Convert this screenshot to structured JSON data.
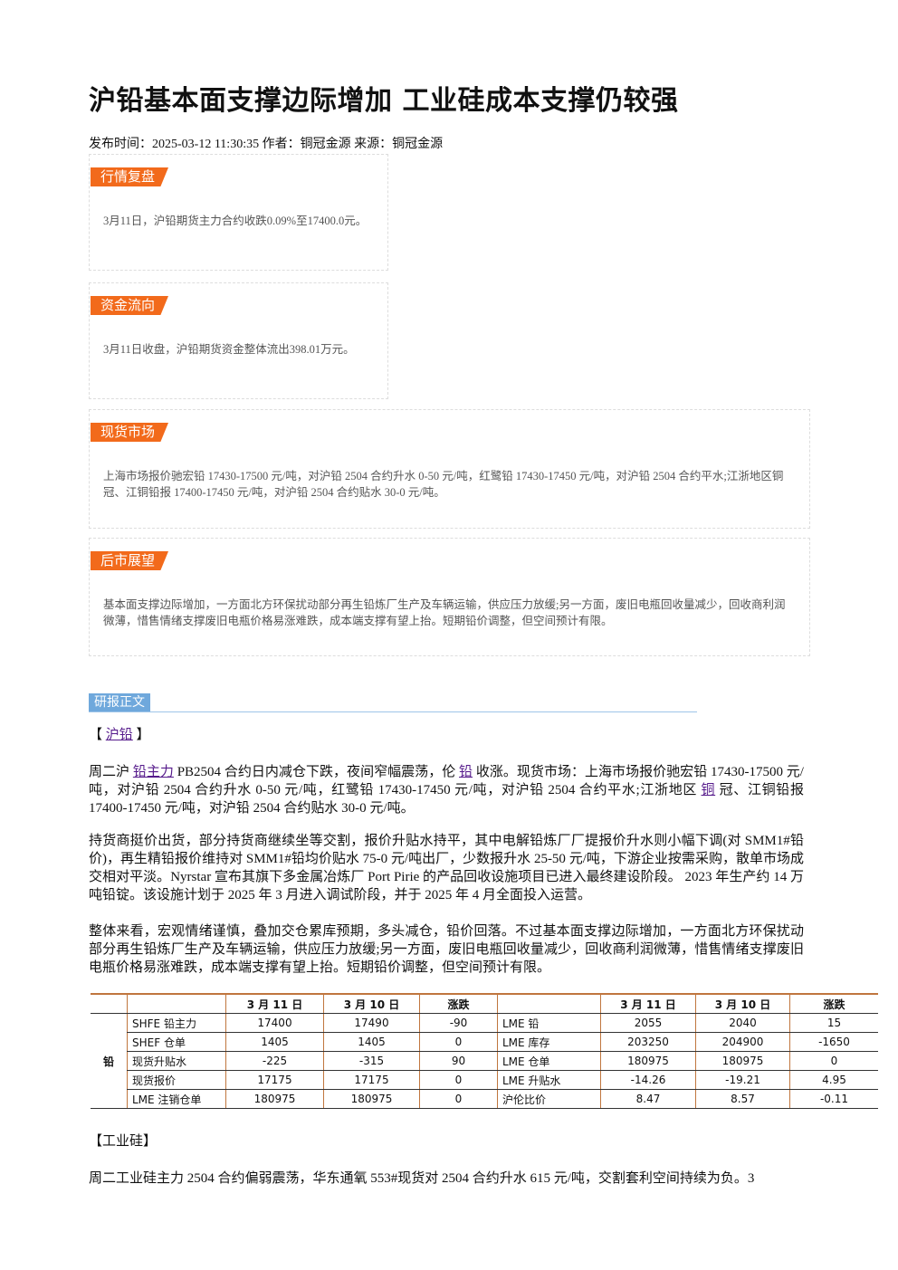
{
  "header": {
    "title": "沪铅基本面支撑边际增加 工业硅成本支撑仍较强",
    "meta": "发布时间：2025-03-12 11:30:35 作者：铜冠金源 来源：铜冠金源"
  },
  "summary": [
    {
      "tag": "行情复盘",
      "text": "3月11日，沪铅期货主力合约收跌0.09%至17400.0元。"
    },
    {
      "tag": "资金流向",
      "text": "3月11日收盘，沪铅期货资金整体流出398.01万元。"
    },
    {
      "tag": "现货市场",
      "text": "上海市场报价驰宏铅 17430-17500 元/吨，对沪铅 2504 合约升水 0-50 元/吨，红鹭铅 17430-17450 元/吨，对沪铅 2504 合约平水;江浙地区铜冠、江铜铅报 17400-17450 元/吨，对沪铅 2504 合约贴水 30-0 元/吨。"
    },
    {
      "tag": "后市展望",
      "text": "基本面支撑边际增加，一方面北方环保扰动部分再生铅炼厂生产及车辆运输，供应压力放缓;另一方面，废旧电瓶回收量减少，回收商利润微薄，惜售情绪支撑废旧电瓶价格易涨难跌，成本端支撑有望上抬。短期铅价调整，但空间预计有限。"
    }
  ],
  "report": {
    "label": "研报正文",
    "lead_open": "【",
    "lead_link": "沪铅",
    "lead_close": "】",
    "paragraphs": [
      [
        {
          "text": "周二沪 "
        },
        {
          "link": "铅主力"
        },
        {
          "text": " PB2504 合约日内减仓下跌，夜间窄幅震荡，伦 "
        },
        {
          "link": "铅"
        },
        {
          "text": " 收涨。现货市场：上海市场报价驰宏铅 17430-17500 元/吨，对沪铅 2504 合约升水 0-50 元/吨，红鹭铅 17430-17450 元/吨，对沪铅 2504 合约平水;江浙地区 "
        },
        {
          "link": "铜"
        },
        {
          "text": " 冠、江铜铅报 17400-17450 元/吨，对沪铅 2504 合约贴水 30-0 元/吨。"
        }
      ],
      [
        {
          "text": "持货商挺价出货，部分持货商继续坐等交割，报价升贴水持平，其中电解铅炼厂厂提报价升水则小幅下调(对 SMM1#铅价)，再生精铅报价维持对 SMM1#铅均价贴水 75-0 元/吨出厂，少数报升水 25-50 元/吨，下游企业按需采购，散单市场成交相对平淡。Nyrstar 宣布其旗下多金属冶炼厂 Port Pirie 的产品回收设施项目已进入最终建设阶段。 2023 年生产约 14 万吨铅锭。该设施计划于 2025 年 3 月进入调试阶段，并于 2025 年 4 月全面投入运营。"
        }
      ],
      [
        {
          "text": "整体来看，宏观情绪谨慎，叠加交仓累库预期，多头减仓，铅价回落。不过基本面支撑边际增加，一方面北方环保扰动部分再生铅炼厂生产及车辆运输，供应压力放缓;另一方面，废旧电瓶回收量减少，回收商利润微薄，惜售情绪支撑废旧电瓶价格易涨难跌，成本端支撑有望上抬。短期铅价调整，但空间预计有限。"
        }
      ]
    ],
    "table": {
      "group": "铅",
      "columns": [
        "3 月 11 日",
        "3 月 10 日",
        "涨跌",
        "3 月 11 日",
        "3 月 10 日",
        "涨跌"
      ],
      "rows": [
        [
          "SHFE 铅主力",
          17400,
          17490,
          -90,
          "LME 铅",
          2055,
          2040,
          15
        ],
        [
          "SHEF 仓单",
          1405,
          1405,
          0,
          "LME 库存",
          203250,
          204900,
          -1650
        ],
        [
          "现货升贴水",
          -225,
          -315,
          90,
          "LME 仓单",
          180975,
          180975,
          0
        ],
        [
          "现货报价",
          17175,
          17175,
          0,
          "LME 升贴水",
          -14.26,
          -19.21,
          4.95
        ],
        [
          "LME 注销仓单",
          180975,
          180975,
          0,
          "沪伦比价",
          8.47,
          8.57,
          -0.11
        ]
      ]
    },
    "section2_title": "【工业硅】",
    "section2_text": "周二工业硅主力 2504 合约偏弱震荡，华东通氧 553#现货对 2504 合约升水 615 元/吨，交割套利空间持续为负。3"
  }
}
